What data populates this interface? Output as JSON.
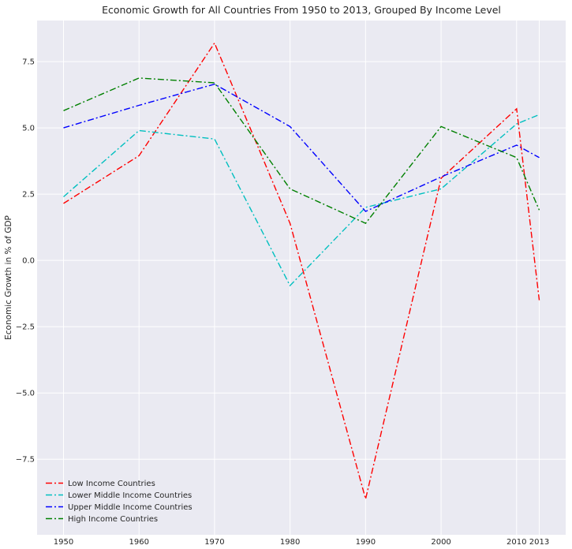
{
  "chart_data": {
    "type": "line",
    "title": "Economic Growth for All Countries From 1950 to 2013, Grouped By Income Level",
    "xlabel": "",
    "ylabel": "Economic Growth in % of GDP",
    "x": [
      1950,
      1960,
      1970,
      1980,
      1990,
      2000,
      2010,
      2013
    ],
    "x_ticks": [
      "1950",
      "1960",
      "1970",
      "1980",
      "1990",
      "2000",
      "2010",
      "2013"
    ],
    "y_ticks": [
      "7.5",
      "5.0",
      "2.5",
      "0.0",
      "−2.5",
      "−5.0",
      "−7.5"
    ],
    "y_tick_values": [
      7.5,
      5.0,
      2.5,
      0.0,
      -2.5,
      -5.0,
      -7.5
    ],
    "xlim": [
      1946.5,
      2016.5
    ],
    "ylim": [
      -10.35,
      9.05
    ],
    "grid": true,
    "legend_position": "bottom-left",
    "series": [
      {
        "name": "Low Income Countries",
        "color": "#ff0000",
        "values": [
          2.15,
          3.95,
          8.2,
          1.4,
          -9.0,
          3.1,
          5.72,
          -1.5
        ]
      },
      {
        "name": "Lower Middle Income Countries",
        "color": "#00bfbf",
        "values": [
          2.4,
          4.9,
          4.58,
          -0.95,
          2.0,
          2.7,
          5.15,
          5.5
        ]
      },
      {
        "name": "Upper Middle Income Countries",
        "color": "#0000ff",
        "values": [
          5.0,
          5.85,
          6.65,
          5.05,
          1.85,
          3.15,
          4.35,
          3.88
        ]
      },
      {
        "name": "High Income Countries",
        "color": "#008000",
        "values": [
          5.65,
          6.88,
          6.7,
          2.7,
          1.4,
          5.05,
          3.88,
          1.9
        ]
      }
    ]
  }
}
